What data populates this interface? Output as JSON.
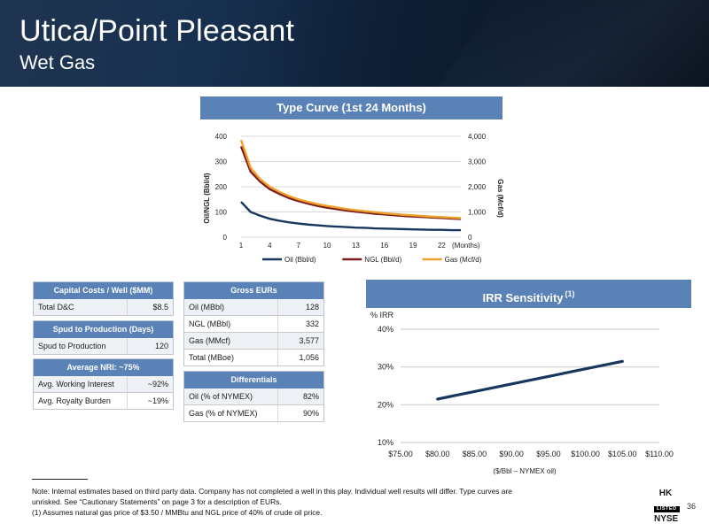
{
  "header": {
    "title": "Utica/Point Pleasant",
    "subtitle": "Wet Gas"
  },
  "type_curve": {
    "banner": "Type Curve (1st 24 Months)",
    "chart_data": {
      "type": "line",
      "title": "Type Curve (1st 24 Months)",
      "x": [
        1,
        2,
        3,
        4,
        5,
        6,
        7,
        8,
        9,
        10,
        11,
        12,
        13,
        14,
        15,
        16,
        17,
        18,
        19,
        20,
        21,
        22,
        23,
        24
      ],
      "xticks": [
        "1",
        "4",
        "7",
        "10",
        "13",
        "16",
        "19",
        "22"
      ],
      "xunit": "(Months)",
      "ylabel_left": "Oil/NGL (Bbl/d)",
      "ylabel_right": "Gas (Mcf/d)",
      "ylim_left": [
        0,
        400
      ],
      "ylim_right": [
        0,
        4000
      ],
      "yticks_left": [
        "0",
        "100",
        "200",
        "300",
        "400"
      ],
      "yticks_right": [
        "0",
        "1,000",
        "2,000",
        "3,000",
        "4,000"
      ],
      "series": [
        {
          "name": "Oil (Bbl/d)",
          "axis": "left",
          "color": "#17375e",
          "values": [
            140,
            100,
            85,
            73,
            65,
            59,
            54,
            50,
            47,
            44,
            42,
            40,
            38,
            37,
            35,
            34,
            33,
            32,
            31,
            30,
            29,
            29,
            28,
            28
          ]
        },
        {
          "name": "NGL (Bbl/d)",
          "axis": "left",
          "color": "#7b1f1f",
          "values": [
            360,
            260,
            220,
            190,
            172,
            155,
            143,
            133,
            124,
            117,
            111,
            106,
            101,
            97,
            93,
            90,
            87,
            84,
            82,
            80,
            78,
            76,
            74,
            72
          ]
        },
        {
          "name": "Gas (Mcf/d)",
          "axis": "right",
          "color": "#f0a028",
          "values": [
            3850,
            2750,
            2300,
            2000,
            1800,
            1630,
            1500,
            1400,
            1310,
            1240,
            1180,
            1120,
            1070,
            1030,
            990,
            950,
            920,
            890,
            865,
            840,
            815,
            795,
            775,
            755
          ]
        }
      ],
      "legend_position": "bottom",
      "grid": true
    }
  },
  "capital_costs": {
    "header": "Capital Costs / Well ($MM)",
    "rows": [
      {
        "label": "Total D&C",
        "value": "$8.5"
      }
    ]
  },
  "spud": {
    "header": "Spud to Production (Days)",
    "rows": [
      {
        "label": "Spud to Production",
        "value": "120"
      }
    ]
  },
  "nri": {
    "header": "Average NRI: ~75%",
    "rows": [
      {
        "label": "Avg. Working Interest",
        "value": "~92%"
      },
      {
        "label": "Avg. Royalty Burden",
        "value": "~19%"
      }
    ]
  },
  "eurs": {
    "header": "Gross EURs",
    "rows": [
      {
        "label": "Oil (MBbl)",
        "value": "128"
      },
      {
        "label": "NGL (MBbl)",
        "value": "332"
      },
      {
        "label": "Gas (MMcf)",
        "value": "3,577"
      },
      {
        "label": "Total (MBoe)",
        "value": "1,056"
      }
    ]
  },
  "differentials": {
    "header": "Differentials",
    "rows": [
      {
        "label": "Oil (% of NYMEX)",
        "value": "82%"
      },
      {
        "label": "Gas (% of NYMEX)",
        "value": "90%"
      }
    ]
  },
  "irr": {
    "banner": "IRR Sensitivity",
    "footnote_ref": "(1)",
    "chart_data": {
      "type": "line",
      "title": "IRR Sensitivity",
      "ylabel": "% IRR",
      "xlabel": "($/Bbl – NYMEX oil)",
      "xlim": [
        75,
        110
      ],
      "ylim": [
        10,
        40
      ],
      "xticks": [
        "$75.00",
        "$80.00",
        "$85.00",
        "$90.00",
        "$95.00",
        "$100.00",
        "$105.00",
        "$110.00"
      ],
      "yticks": [
        "10%",
        "20%",
        "30%",
        "40%"
      ],
      "series": [
        {
          "color": "#17375e",
          "x": [
            80,
            105
          ],
          "values": [
            21.5,
            31.5
          ]
        }
      ],
      "grid": true
    }
  },
  "footer": {
    "note_line1": "Note: Internal estimates based on third party data. Company has not completed a well in this play. Individual well results will differ. Type curves are",
    "note_line2": "unrisked.  See “Cautionary Statements” on page 3 for a description of EURs.",
    "note_line3": "(1) Assumes natural gas price of $3.50 / MMBtu and NGL price of 40% of crude oil price.",
    "page_number": "36",
    "logo_hk": "HK",
    "logo_listed": "LISTED",
    "logo_nyse": "NYSE"
  }
}
